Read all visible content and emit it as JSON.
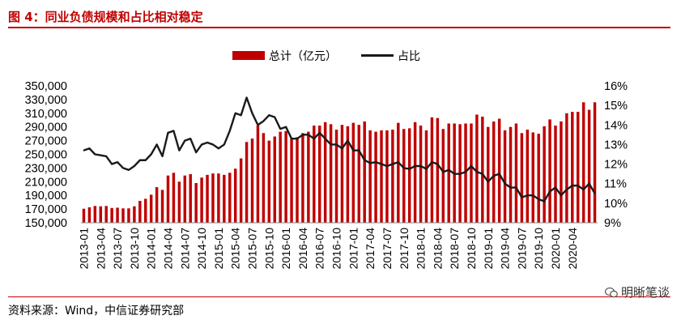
{
  "header": {
    "title": "图 4：同业负债规模和占比相对稳定"
  },
  "footer": {
    "source": "资料来源：Wind，中信证券研究部",
    "watermark": "明晰笔谈"
  },
  "colors": {
    "bar": "#c00000",
    "line": "#1a1a1a",
    "accent": "#c00000"
  },
  "chart_data": {
    "type": "bar",
    "legend": {
      "placement": "top-center",
      "entries": [
        "总计（亿元）",
        "占比"
      ]
    },
    "x_tick_labels": [
      "2013-01",
      "2013-04",
      "2013-07",
      "2013-10",
      "2014-01",
      "2014-04",
      "2014-07",
      "2014-10",
      "2015-01",
      "2015-04",
      "2015-07",
      "2015-10",
      "2016-01",
      "2016-04",
      "2016-07",
      "2016-10",
      "2017-01",
      "2017-04",
      "2017-07",
      "2017-10",
      "2018-01",
      "2018-04",
      "2018-07",
      "2018-10",
      "2019-01",
      "2019-04",
      "2019-07",
      "2019-10",
      "2020-01",
      "2020-04"
    ],
    "y_left": {
      "ylim": [
        150000,
        350000
      ],
      "ticks": [
        "150,000",
        "170,000",
        "190,000",
        "210,000",
        "230,000",
        "250,000",
        "270,000",
        "290,000",
        "310,000",
        "330,000",
        "350,000"
      ]
    },
    "y_right": {
      "ylim": [
        9,
        16
      ],
      "ticks": [
        "9%",
        "10%",
        "11%",
        "12%",
        "13%",
        "14%",
        "15%",
        "16%"
      ]
    },
    "series": [
      {
        "name": "总计（亿元）",
        "type": "bar",
        "values": [
          170500,
          172500,
          174500,
          174000,
          174500,
          171500,
          172000,
          171000,
          171000,
          174000,
          182000,
          185000,
          191000,
          202000,
          198000,
          219000,
          223000,
          210000,
          219000,
          221000,
          208000,
          216000,
          220000,
          222000,
          222000,
          220000,
          223000,
          229000,
          244000,
          268000,
          273000,
          292000,
          281000,
          270000,
          276000,
          283000,
          284000,
          273000,
          275000,
          281000,
          283000,
          292000,
          292000,
          297000,
          294000,
          286000,
          293000,
          291000,
          296000,
          293000,
          298000,
          285000,
          283000,
          285000,
          285000,
          286000,
          296000,
          287000,
          288000,
          297000,
          292000,
          285000,
          304000,
          303000,
          287000,
          295000,
          295000,
          294000,
          295000,
          295000,
          308000,
          305000,
          290000,
          298000,
          302000,
          285000,
          290000,
          295000,
          281000,
          286000,
          282000,
          280000,
          291000,
          301000,
          292000,
          298000,
          310000,
          312000,
          312000,
          326000,
          315000,
          326000
        ]
      },
      {
        "name": "占比",
        "type": "line",
        "values": [
          12.7,
          12.8,
          12.5,
          12.45,
          12.4,
          12.0,
          12.1,
          11.8,
          11.7,
          11.9,
          12.2,
          12.2,
          12.5,
          13.0,
          12.4,
          13.6,
          13.7,
          12.7,
          13.2,
          13.3,
          12.6,
          13.0,
          13.1,
          13.0,
          12.8,
          13.0,
          13.7,
          14.6,
          14.5,
          15.4,
          14.6,
          14.0,
          14.2,
          14.5,
          14.4,
          13.8,
          13.9,
          13.3,
          13.3,
          13.5,
          13.5,
          13.3,
          13.6,
          13.3,
          13.0,
          13.0,
          12.8,
          13.2,
          12.7,
          12.7,
          12.2,
          12.05,
          12.1,
          12.0,
          11.9,
          12.0,
          12.1,
          11.8,
          11.75,
          11.9,
          11.9,
          11.75,
          12.1,
          12.0,
          11.6,
          11.7,
          11.5,
          11.5,
          11.6,
          11.9,
          11.6,
          11.5,
          11.1,
          11.4,
          11.5,
          11.0,
          10.8,
          10.8,
          10.3,
          10.4,
          10.4,
          10.2,
          10.1,
          10.6,
          10.8,
          10.4,
          10.7,
          10.9,
          10.9,
          10.7,
          11.0,
          10.5
        ]
      }
    ],
    "grid": false
  }
}
